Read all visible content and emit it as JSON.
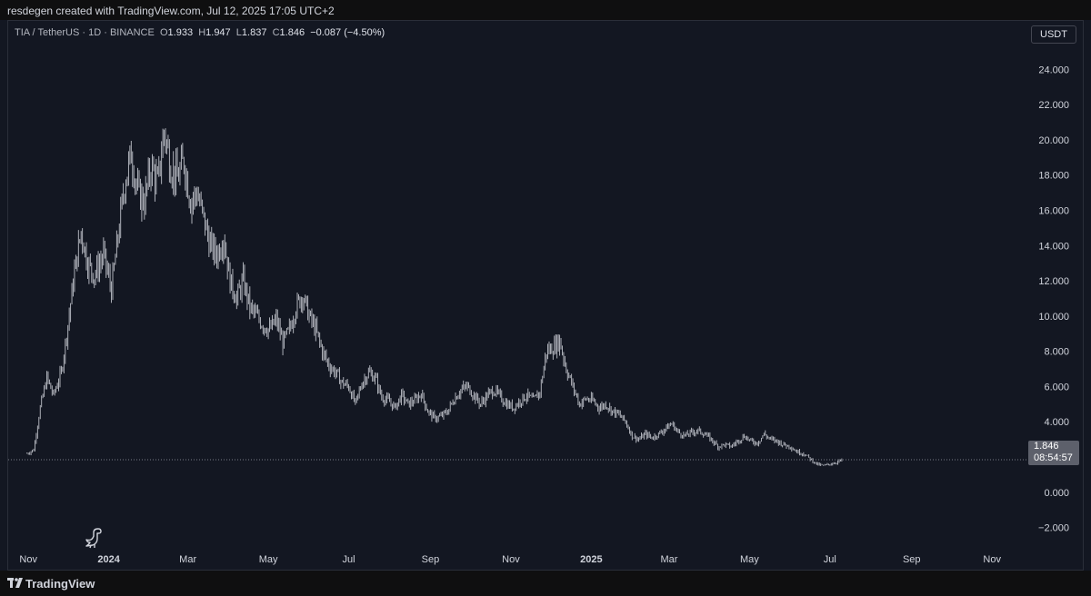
{
  "watermark_text": "resdegen created with TradingView.com, Jul 12, 2025 17:05 UTC+2",
  "legend": {
    "symbol": "TIA / TetherUS · 1D · BINANCE",
    "o_label": "O",
    "o_value": "1.933",
    "h_label": "H",
    "h_value": "1.947",
    "l_label": "L",
    "l_value": "1.837",
    "c_label": "C",
    "c_value": "1.846",
    "change": "−0.087 (−4.50%)"
  },
  "currency_button": "USDT",
  "price_tag": {
    "price": "1.846",
    "countdown": "08:54:57"
  },
  "footer": {
    "brand": "TradingView"
  },
  "colors": {
    "background": "#131722",
    "candles": "#d1d4dc",
    "grid": "#1e222d",
    "last_price_line": "#787b86"
  },
  "icons": [
    "dino-icon",
    "tradingview-logo-icon"
  ],
  "chart_data": {
    "type": "line",
    "title": "TIA / TetherUS · 1D · BINANCE",
    "xlabel": "",
    "ylabel": "",
    "grid": false,
    "ylim": [
      -3,
      26.8
    ],
    "y_ticks": [
      24,
      22,
      20,
      18,
      16,
      14,
      12,
      10,
      8,
      6,
      4,
      2,
      0,
      -2
    ],
    "y_tick_labels": [
      "24.000",
      "22.000",
      "20.000",
      "18.000",
      "16.000",
      "14.000",
      "12.000",
      "10.000",
      "8.000",
      "6.000",
      "4.000",
      "",
      "0.000",
      "−2.000"
    ],
    "x_range": [
      "2023-10-16",
      "2025-11-25"
    ],
    "x_ticks": [
      {
        "date": "2023-11-01",
        "label": "Nov",
        "bold": false
      },
      {
        "date": "2024-01-01",
        "label": "2024",
        "bold": true
      },
      {
        "date": "2024-03-01",
        "label": "Mar",
        "bold": false
      },
      {
        "date": "2024-05-01",
        "label": "May",
        "bold": false
      },
      {
        "date": "2024-07-01",
        "label": "Jul",
        "bold": false
      },
      {
        "date": "2024-09-01",
        "label": "Sep",
        "bold": false
      },
      {
        "date": "2024-11-01",
        "label": "Nov",
        "bold": false
      },
      {
        "date": "2025-01-01",
        "label": "2025",
        "bold": true
      },
      {
        "date": "2025-03-01",
        "label": "Mar",
        "bold": false
      },
      {
        "date": "2025-05-01",
        "label": "May",
        "bold": false
      },
      {
        "date": "2025-07-01",
        "label": "Jul",
        "bold": false
      },
      {
        "date": "2025-09-01",
        "label": "Sep",
        "bold": false
      },
      {
        "date": "2025-11-01",
        "label": "Nov",
        "bold": false
      }
    ],
    "last_price": 1.846,
    "series": [
      {
        "values": [
          [
            "2023-10-31",
            2.2
          ],
          [
            "2023-11-05",
            2.4
          ],
          [
            "2023-11-10",
            4.8
          ],
          [
            "2023-11-15",
            6.5
          ],
          [
            "2023-11-20",
            5.5
          ],
          [
            "2023-11-26",
            6.8
          ],
          [
            "2023-12-01",
            9.5
          ],
          [
            "2023-12-06",
            12.5
          ],
          [
            "2023-12-11",
            14.8
          ],
          [
            "2023-12-16",
            13.0
          ],
          [
            "2023-12-21",
            12.3
          ],
          [
            "2023-12-28",
            13.5
          ],
          [
            "2024-01-03",
            11.5
          ],
          [
            "2024-01-08",
            14.5
          ],
          [
            "2024-01-13",
            17.5
          ],
          [
            "2024-01-18",
            19.2
          ],
          [
            "2024-01-23",
            17.0
          ],
          [
            "2024-01-28",
            16.5
          ],
          [
            "2024-02-02",
            18.5
          ],
          [
            "2024-02-07",
            17.5
          ],
          [
            "2024-02-12",
            20.5
          ],
          [
            "2024-02-17",
            18.5
          ],
          [
            "2024-02-22",
            17.8
          ],
          [
            "2024-02-27",
            18.8
          ],
          [
            "2024-03-03",
            16.5
          ],
          [
            "2024-03-08",
            17.0
          ],
          [
            "2024-03-13",
            15.5
          ],
          [
            "2024-03-18",
            14.0
          ],
          [
            "2024-03-23",
            13.5
          ],
          [
            "2024-03-28",
            14.5
          ],
          [
            "2024-04-02",
            12.0
          ],
          [
            "2024-04-07",
            11.0
          ],
          [
            "2024-04-12",
            12.0
          ],
          [
            "2024-04-17",
            10.5
          ],
          [
            "2024-04-22",
            10.0
          ],
          [
            "2024-04-27",
            9.5
          ],
          [
            "2024-05-02",
            9.2
          ],
          [
            "2024-05-07",
            9.8
          ],
          [
            "2024-05-12",
            8.5
          ],
          [
            "2024-05-17",
            9.2
          ],
          [
            "2024-05-22",
            10.5
          ],
          [
            "2024-05-27",
            11.2
          ],
          [
            "2024-06-01",
            10.0
          ],
          [
            "2024-06-06",
            9.2
          ],
          [
            "2024-06-11",
            8.0
          ],
          [
            "2024-06-16",
            7.2
          ],
          [
            "2024-06-21",
            6.8
          ],
          [
            "2024-06-26",
            6.2
          ],
          [
            "2024-07-01",
            6.0
          ],
          [
            "2024-07-06",
            5.0
          ],
          [
            "2024-07-11",
            6.2
          ],
          [
            "2024-07-16",
            6.8
          ],
          [
            "2024-07-21",
            6.5
          ],
          [
            "2024-07-26",
            5.4
          ],
          [
            "2024-07-31",
            5.2
          ],
          [
            "2024-08-05",
            4.8
          ],
          [
            "2024-08-10",
            5.5
          ],
          [
            "2024-08-15",
            5.0
          ],
          [
            "2024-08-20",
            5.2
          ],
          [
            "2024-08-25",
            5.6
          ],
          [
            "2024-08-30",
            4.6
          ],
          [
            "2024-09-04",
            4.2
          ],
          [
            "2024-09-09",
            4.3
          ],
          [
            "2024-09-14",
            4.6
          ],
          [
            "2024-09-19",
            5.3
          ],
          [
            "2024-09-24",
            5.8
          ],
          [
            "2024-09-29",
            6.0
          ],
          [
            "2024-10-04",
            5.5
          ],
          [
            "2024-10-09",
            5.0
          ],
          [
            "2024-10-14",
            5.5
          ],
          [
            "2024-10-19",
            5.8
          ],
          [
            "2024-10-24",
            5.4
          ],
          [
            "2024-10-29",
            5.0
          ],
          [
            "2024-11-03",
            4.8
          ],
          [
            "2024-11-08",
            5.2
          ],
          [
            "2024-11-13",
            5.5
          ],
          [
            "2024-11-18",
            5.2
          ],
          [
            "2024-11-23",
            5.7
          ],
          [
            "2024-11-28",
            8.0
          ],
          [
            "2024-12-03",
            8.2
          ],
          [
            "2024-12-08",
            8.6
          ],
          [
            "2024-12-13",
            7.0
          ],
          [
            "2024-12-18",
            6.0
          ],
          [
            "2024-12-23",
            5.0
          ],
          [
            "2024-12-28",
            5.3
          ],
          [
            "2025-01-02",
            5.2
          ],
          [
            "2025-01-07",
            4.8
          ],
          [
            "2025-01-12",
            5.0
          ],
          [
            "2025-01-17",
            4.6
          ],
          [
            "2025-01-22",
            4.4
          ],
          [
            "2025-01-27",
            4.0
          ],
          [
            "2025-02-01",
            3.2
          ],
          [
            "2025-02-06",
            3.0
          ],
          [
            "2025-02-11",
            3.3
          ],
          [
            "2025-02-16",
            3.1
          ],
          [
            "2025-02-21",
            3.3
          ],
          [
            "2025-02-26",
            3.6
          ],
          [
            "2025-03-03",
            3.9
          ],
          [
            "2025-03-08",
            3.4
          ],
          [
            "2025-03-13",
            3.2
          ],
          [
            "2025-03-18",
            3.4
          ],
          [
            "2025-03-23",
            3.5
          ],
          [
            "2025-03-28",
            3.3
          ],
          [
            "2025-04-02",
            3.0
          ],
          [
            "2025-04-07",
            2.6
          ],
          [
            "2025-04-12",
            2.7
          ],
          [
            "2025-04-17",
            2.6
          ],
          [
            "2025-04-22",
            2.9
          ],
          [
            "2025-04-27",
            3.2
          ],
          [
            "2025-05-02",
            2.9
          ],
          [
            "2025-05-07",
            2.8
          ],
          [
            "2025-05-12",
            3.3
          ],
          [
            "2025-05-17",
            3.0
          ],
          [
            "2025-05-22",
            2.9
          ],
          [
            "2025-05-27",
            2.7
          ],
          [
            "2025-06-01",
            2.6
          ],
          [
            "2025-06-06",
            2.3
          ],
          [
            "2025-06-11",
            2.2
          ],
          [
            "2025-06-16",
            1.9
          ],
          [
            "2025-06-21",
            1.6
          ],
          [
            "2025-06-26",
            1.5
          ],
          [
            "2025-07-01",
            1.6
          ],
          [
            "2025-07-06",
            1.7
          ],
          [
            "2025-07-11",
            1.85
          ]
        ]
      }
    ]
  }
}
